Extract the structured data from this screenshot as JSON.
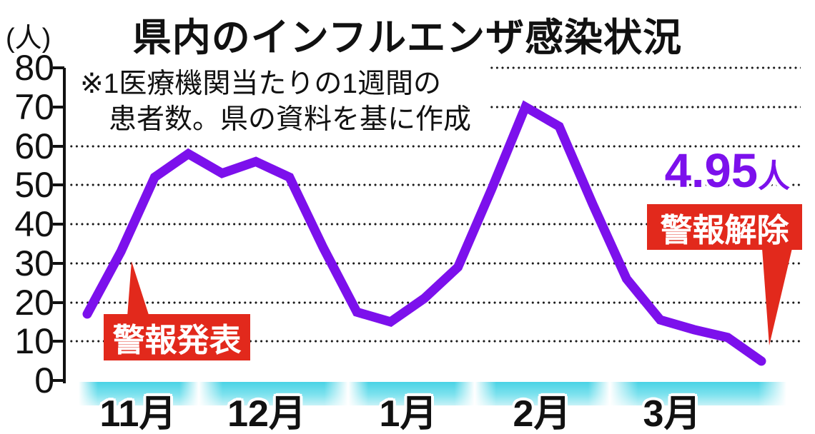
{
  "title": "県内のインフルエンザ感染状況",
  "y_unit": "(人)",
  "note": [
    "※1医療機関当たりの1週間の",
    "患者数。県の資料を基に作成"
  ],
  "labels": {
    "warning_issued": "警報発表",
    "warning_lifted": "警報解除",
    "latest_value": "4.95",
    "latest_value_unit": "人"
  },
  "colors": {
    "line": "#7c10ec",
    "badge_red": "#e2291c",
    "band_cyan": "#5ed9e8",
    "text": "#111111"
  },
  "chart_data": {
    "type": "line",
    "title": "県内のインフルエンザ感染状況",
    "ylabel": "(人)",
    "ylim": [
      0,
      80
    ],
    "yticks": [
      80,
      70,
      60,
      50,
      40,
      30,
      20,
      10,
      0
    ],
    "grid": "horizontal-dotted",
    "legend_position": "none",
    "x_months": [
      "11月",
      "12月",
      "1月",
      "2月",
      "3月"
    ],
    "weeks_per_month": [
      4,
      4,
      4,
      4,
      5
    ],
    "series": [
      {
        "name": "1医療機関当たりの1週間の患者数",
        "values": [
          17,
          33,
          52,
          58,
          53,
          56,
          52,
          34,
          17.5,
          15,
          21,
          29,
          49,
          70,
          65,
          45,
          26,
          15.5,
          13,
          11,
          4.95
        ]
      }
    ],
    "annotations": [
      {
        "text": "警報発表",
        "points_to_value": 30,
        "style": "red-badge"
      },
      {
        "text": "警報解除",
        "points_to_value": 4.95,
        "style": "red-badge"
      },
      {
        "text": "4.95人",
        "style": "purple-value-label"
      }
    ]
  }
}
